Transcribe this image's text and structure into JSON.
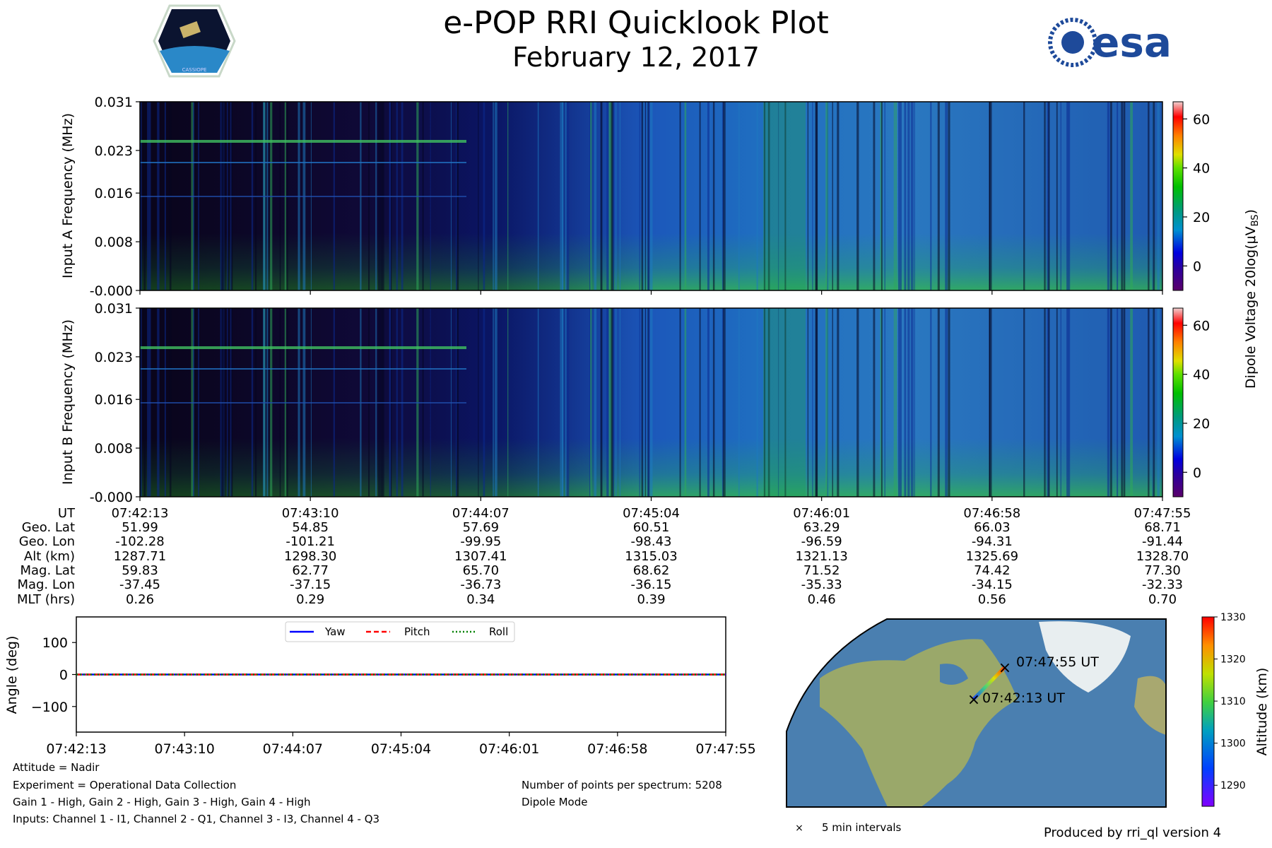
{
  "header": {
    "title": "e-POP RRI Quicklook Plot",
    "date": "February 12, 2017",
    "cassiope_logo_text": "CASSIOPE",
    "esa_logo_text": "esa"
  },
  "chart_data": [
    {
      "type": "heatmap",
      "name": "input-a-spectrogram",
      "ylabel": "Input A Frequency (MHz)",
      "ytick_labels": [
        "-0.000",
        "0.008",
        "0.016",
        "0.023",
        "0.031"
      ],
      "yticks": [
        0.0,
        0.008,
        0.016,
        0.023,
        0.031
      ],
      "ylim": [
        0.0,
        0.031
      ],
      "colorbar": {
        "label": "Dipole Voltage 20log(μV",
        "label_sub": "BS",
        "label_end": ")",
        "ticks": [
          0,
          20,
          40,
          60
        ],
        "range": [
          -10,
          67
        ]
      }
    },
    {
      "type": "heatmap",
      "name": "input-b-spectrogram",
      "ylabel": "Input B Frequency (MHz)",
      "ytick_labels": [
        "-0.000",
        "0.008",
        "0.016",
        "0.023",
        "0.031"
      ],
      "yticks": [
        0.0,
        0.008,
        0.016,
        0.023,
        0.031
      ],
      "ylim": [
        0.0,
        0.031
      ],
      "colorbar": {
        "ticks": [
          0,
          20,
          40,
          60
        ],
        "range": [
          -10,
          67
        ]
      }
    },
    {
      "type": "line",
      "name": "attitude-plot",
      "ylabel": "Angle (deg)",
      "yticks": [
        100,
        0,
        -100
      ],
      "ytick_labels": [
        "100",
        "0",
        "−100"
      ],
      "ylim": [
        -180,
        180
      ],
      "x": [
        "07:42:13",
        "07:43:10",
        "07:44:07",
        "07:45:04",
        "07:46:01",
        "07:46:58",
        "07:47:55"
      ],
      "series": [
        {
          "name": "Yaw",
          "values": [
            0,
            0,
            0,
            0,
            0,
            0,
            0
          ],
          "color": "#0000ff",
          "style": "solid"
        },
        {
          "name": "Pitch",
          "values": [
            0,
            0,
            0,
            0,
            0,
            0,
            0
          ],
          "color": "#ff0000",
          "style": "dashed"
        },
        {
          "name": "Roll",
          "values": [
            0,
            0,
            0,
            0,
            0,
            0,
            0
          ],
          "color": "#008000",
          "style": "dotted"
        }
      ]
    },
    {
      "type": "map",
      "name": "ground-track-map",
      "start_label": "07:42:13 UT",
      "end_label": "07:47:55 UT",
      "marker_legend": "5 min intervals",
      "colorbar": {
        "label": "Altitude (km)",
        "ticks": [
          1290,
          1300,
          1310,
          1320,
          1330
        ],
        "range": [
          1285,
          1330
        ]
      }
    }
  ],
  "ephemeris": {
    "row_labels": [
      "UT",
      "Geo. Lat",
      "Geo. Lon",
      "Alt (km)",
      "Mag. Lat",
      "Mag. Lon",
      "MLT (hrs)"
    ],
    "columns": [
      [
        "07:42:13",
        "51.99",
        "-102.28",
        "1287.71",
        "59.83",
        "-37.45",
        "0.26"
      ],
      [
        "07:43:10",
        "54.85",
        "-101.21",
        "1298.30",
        "62.77",
        "-37.15",
        "0.29"
      ],
      [
        "07:44:07",
        "57.69",
        "-99.95",
        "1307.41",
        "65.70",
        "-36.73",
        "0.34"
      ],
      [
        "07:45:04",
        "60.51",
        "-98.43",
        "1315.03",
        "68.62",
        "-36.15",
        "0.39"
      ],
      [
        "07:46:01",
        "63.29",
        "-96.59",
        "1321.13",
        "71.52",
        "-35.33",
        "0.46"
      ],
      [
        "07:46:58",
        "66.03",
        "-94.31",
        "1325.69",
        "74.42",
        "-34.15",
        "0.56"
      ],
      [
        "07:47:55",
        "68.71",
        "-91.44",
        "1328.70",
        "77.30",
        "-32.33",
        "0.70"
      ]
    ]
  },
  "footer": {
    "attitude": "Attitude = Nadir",
    "experiment": "Experiment = Operational Data Collection",
    "gains": "Gain 1 - High, Gain 2 - High, Gain 3 - High, Gain 4 - High",
    "inputs": "Inputs: Channel 1 - I1, Channel 2 - Q1, Channel 3 - I3, Channel 4 - Q3",
    "points": "Number of points per spectrum: 5208",
    "mode": "Dipole Mode",
    "produced_by": "Produced by rri_ql version 4"
  },
  "colors": {
    "yaw": "#0000ff",
    "pitch": "#ff0000",
    "roll": "#008000",
    "ocean": "#4a7fb0",
    "land": "#9aa86a"
  }
}
